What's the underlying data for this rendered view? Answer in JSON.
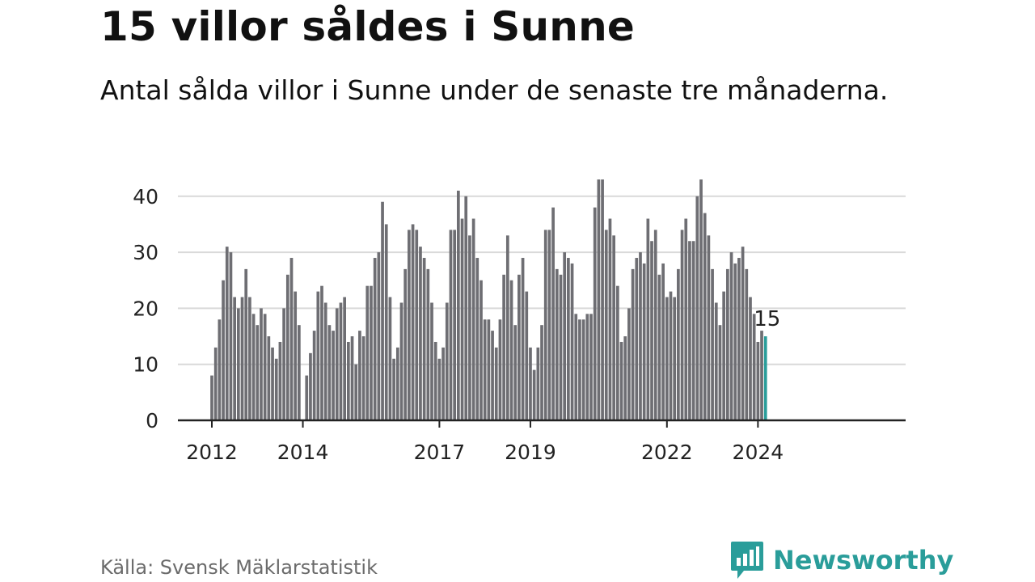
{
  "colors": {
    "bar": "#6e6e73",
    "highlight": "#2a9d9a",
    "grid": "#d9d9d9",
    "axis": "#222222",
    "brand": "#2a9d9a",
    "source": "#6b6b6b"
  },
  "brand": {
    "name": "Newsworthy",
    "icon": "newsworthy-logo-icon"
  },
  "source_text": "Källa: Svensk Mäklarstatistik",
  "chart_data": {
    "type": "bar",
    "title": "15 villor såldes i Sunne",
    "subtitle": "Antal sålda villor i Sunne under de senaste tre månaderna.",
    "xlabel": "",
    "ylabel": "",
    "ylim": [
      0,
      43
    ],
    "yticks": [
      0,
      10,
      20,
      30,
      40
    ],
    "start_year": 2012,
    "start_month": 1,
    "xticks": [
      "2012",
      "2014",
      "2017",
      "2019",
      "2022",
      "2024"
    ],
    "grid": true,
    "highlight_label": "15",
    "values": [
      8,
      13,
      18,
      25,
      31,
      30,
      22,
      20,
      22,
      27,
      22,
      19,
      17,
      20,
      19,
      15,
      13,
      11,
      14,
      20,
      26,
      29,
      23,
      17,
      0,
      8,
      12,
      16,
      23,
      24,
      21,
      17,
      16,
      20,
      21,
      22,
      14,
      15,
      10,
      16,
      15,
      24,
      24,
      29,
      30,
      39,
      35,
      22,
      11,
      13,
      21,
      27,
      34,
      35,
      34,
      31,
      29,
      27,
      21,
      14,
      11,
      13,
      21,
      34,
      34,
      41,
      36,
      40,
      33,
      36,
      29,
      25,
      18,
      18,
      16,
      13,
      18,
      26,
      33,
      25,
      17,
      26,
      29,
      23,
      13,
      9,
      13,
      17,
      34,
      34,
      38,
      27,
      26,
      30,
      29,
      28,
      19,
      18,
      18,
      19,
      19,
      38,
      43,
      43,
      34,
      36,
      33,
      24,
      14,
      15,
      20,
      27,
      29,
      30,
      28,
      36,
      32,
      34,
      26,
      28,
      22,
      23,
      22,
      27,
      34,
      36,
      32,
      32,
      40,
      43,
      37,
      33,
      27,
      21,
      17,
      23,
      27,
      30,
      28,
      29,
      31,
      27,
      22,
      19,
      14,
      16,
      15
    ]
  }
}
